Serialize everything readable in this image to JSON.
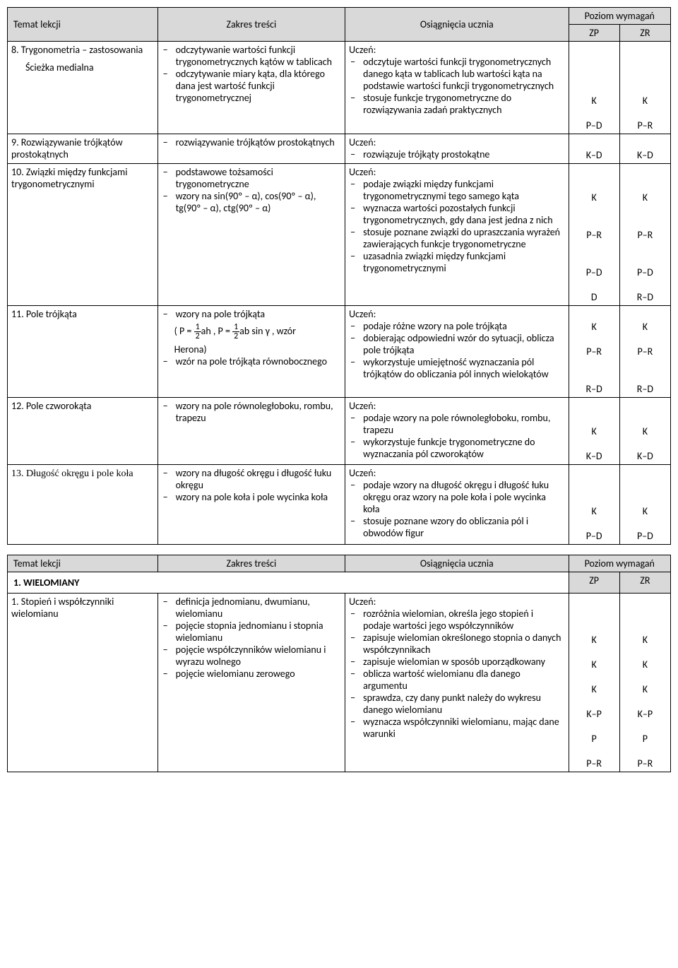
{
  "colors": {
    "header_bg": "#d9d9d9",
    "border": "#000000",
    "text": "#000000",
    "page_bg": "#ffffff"
  },
  "headers": {
    "temat": "Temat lekcji",
    "zakres": "Zakres treści",
    "osiagniecia": "Osiągnięcia ucznia",
    "poziom": "Poziom wymagań",
    "zp": "ZP",
    "zr": "ZR"
  },
  "section": "1. WIELOMIANY",
  "rows": [
    {
      "temat": "8. Trygonometria – zastosowania",
      "temat_sub": "Ścieżka medialna",
      "zakres": [
        "odczytywanie wartości funkcji trygonometrycznych kątów w tablicach",
        "odczytywanie miary kąta, dla którego dana jest wartość funkcji trygonometrycznej"
      ],
      "uczen": "Uczeń:",
      "osiag": [
        "odczytuje wartości funkcji trygonometrycznych danego kąta w tablicach lub wartości kąta na podstawie wartości funkcji trygonometrycznych",
        "stosuje funkcje trygonometryczne do rozwiązywania zadań praktycznych"
      ],
      "zp": [
        "K",
        "P–D"
      ],
      "zr": [
        "K",
        "P–R"
      ]
    },
    {
      "temat": "9. Rozwiązywanie trójkątów prostokątnych",
      "zakres": [
        "rozwiązywanie trójkątów prostokątnych"
      ],
      "uczen": "Uczeń:",
      "osiag": [
        "rozwiązuje trójkąty prostokątne"
      ],
      "zp": [
        "K–D"
      ],
      "zr": [
        "K–D"
      ]
    },
    {
      "temat": "10. Związki między funkcjami trygonometrycznymi",
      "zakres": [
        "podstawowe tożsamości trygonometryczne",
        "wzory na sin(90º – α), cos(90º – α), tg(90º – α), ctg(90º – α)"
      ],
      "uczen": "Uczeń:",
      "osiag": [
        "podaje związki między funkcjami trygonometrycznymi tego samego kąta",
        "wyznacza wartości pozostałych funkcji trygonometrycznych, gdy dana jest jedna z nich",
        "stosuje poznane związki do upraszczania wyrażeń zawierających funkcje trygonometryczne",
        "uzasadnia związki między funkcjami trygonometrycznymi"
      ],
      "zp": [
        "K",
        "P–R",
        "P–D",
        "D"
      ],
      "zr": [
        "K",
        "P–R",
        "P–D",
        "R–D"
      ]
    },
    {
      "temat": "11. Pole trójkąta",
      "zakres_html": true,
      "zakres": [
        "wzory na pole trójkąta",
        "wzór na pole trójkąta równobocznego"
      ],
      "formula_prefix": "( P = ",
      "formula_mid": "ah ,  P = ",
      "formula_suffix": "ab sin γ , wzór",
      "herona": "Herona)",
      "uczen": "Uczeń:",
      "osiag": [
        "podaje różne wzory na pole trójkąta",
        "dobierając odpowiedni wzór do sytuacji, oblicza pole trójkąta",
        "wykorzystuje umiejętność wyznaczania pól trójkątów do obliczania pól innych wielokątów"
      ],
      "zp": [
        "K",
        "P–R",
        "R–D"
      ],
      "zr": [
        "K",
        "P–R",
        "R–D"
      ]
    },
    {
      "temat": "12. Pole czworokąta",
      "zakres": [
        "wzory na pole równoległoboku, rombu, trapezu"
      ],
      "uczen": "Uczeń:",
      "osiag": [
        "podaje wzory na pole równoległoboku, rombu, trapezu",
        "wykorzystuje funkcje trygonometryczne do wyznaczania pól czworokątów"
      ],
      "zp": [
        "K",
        "K–D"
      ],
      "zr": [
        "K",
        "K–D"
      ]
    },
    {
      "temat": "13. Długość okręgu i pole koła",
      "temat_serif": true,
      "zakres": [
        "wzory na długość okręgu i długość łuku okręgu",
        "wzory na pole koła i pole wycinka koła"
      ],
      "uczen": "Uczeń:",
      "osiag": [
        "podaje wzory na długość okręgu i długość łuku okręgu oraz wzory na pole koła i pole wycinka koła",
        "stosuje poznane wzory do obliczania pól i obwodów figur"
      ],
      "zp": [
        "K",
        "P–D"
      ],
      "zr": [
        "K",
        "P–D"
      ]
    }
  ],
  "rows2": [
    {
      "temat": "1. Stopień i współczynniki wielomianu",
      "zakres": [
        "definicja jednomianu, dwumianu, wielomianu",
        "pojęcie stopnia jednomianu i stopnia wielomianu",
        "pojęcie współczynników wielomianu i wyrazu wolnego",
        "pojęcie wielomianu zerowego"
      ],
      "uczen": "Uczeń:",
      "osiag": [
        "rozróżnia wielomian, określa jego stopień i podaje wartości jego współczynników",
        "zapisuje wielomian określonego stopnia o danych współczynnikach",
        "zapisuje wielomian w sposób uporządkowany",
        "oblicza wartość wielomianu dla danego argumentu",
        "sprawdza, czy dany punkt należy do wykresu danego wielomianu",
        "wyznacza współczynniki wielomianu, mając dane warunki"
      ],
      "zp": [
        "K",
        "K",
        "K",
        "K–P",
        "P",
        "P–R"
      ],
      "zr": [
        "K",
        "K",
        "K",
        "K–P",
        "P",
        "P–R"
      ]
    }
  ]
}
